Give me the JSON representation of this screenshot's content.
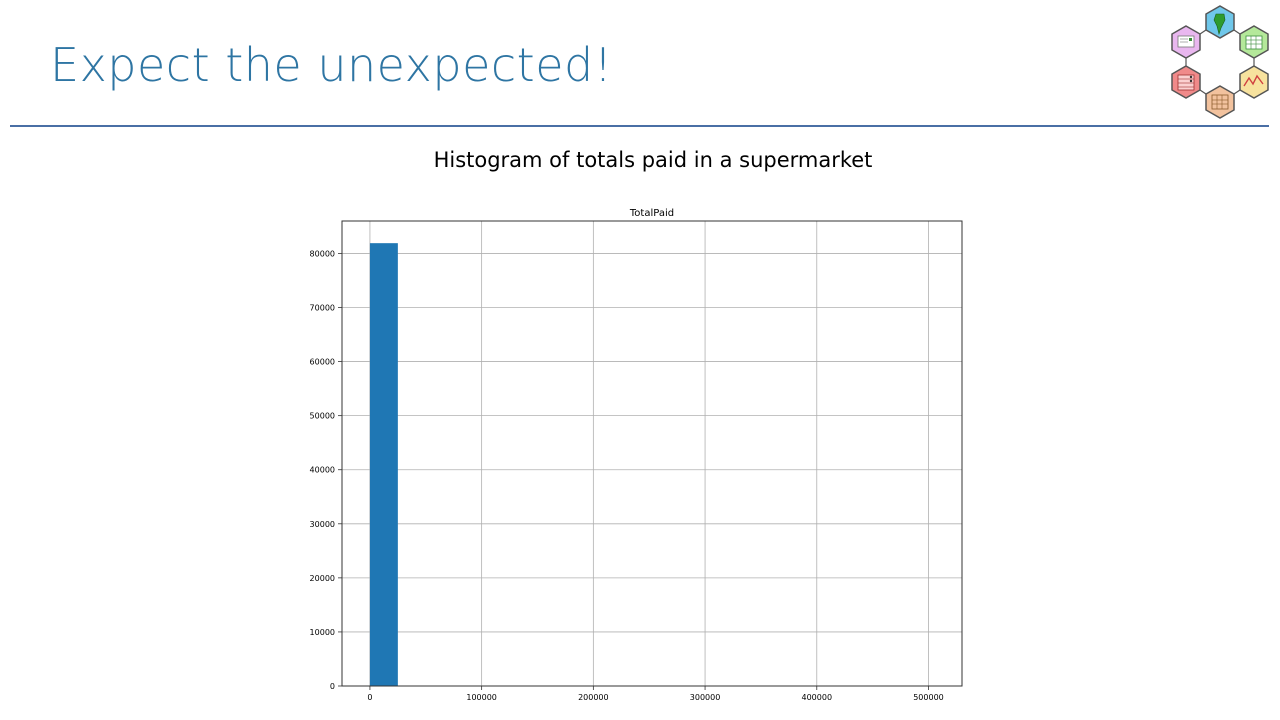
{
  "slide": {
    "title": "Expect the unexpected!",
    "subtitle": "Histogram of totals paid in a supermarket"
  },
  "logo": {
    "icons": [
      "envelope-icon",
      "map-icon",
      "table-icon",
      "line-chart-icon",
      "grid-icon",
      "list-icon"
    ],
    "colors": [
      "#e9b7ef",
      "#6fc7ea",
      "#b4e89a",
      "#f7e29e",
      "#f2c29e",
      "#f08a8a"
    ]
  },
  "chart_data": {
    "type": "bar",
    "title": "TotalPaid",
    "xlabel": "",
    "ylabel": "",
    "bins": [
      {
        "x0": 0,
        "x1": 25000,
        "value": 81900
      }
    ],
    "xlim": [
      -25000,
      530000
    ],
    "ylim": [
      0,
      86000
    ],
    "xticks": [
      0,
      100000,
      200000,
      300000,
      400000,
      500000
    ],
    "yticks": [
      0,
      10000,
      20000,
      30000,
      40000,
      50000,
      60000,
      70000,
      80000
    ],
    "grid": true,
    "colors": {
      "bar": "#1f77b4",
      "grid": "#b0b0b0"
    }
  }
}
